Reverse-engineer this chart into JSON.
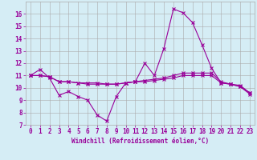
{
  "xlabel": "Windchill (Refroidissement éolien,°C)",
  "x": [
    0,
    1,
    2,
    3,
    4,
    5,
    6,
    7,
    8,
    9,
    10,
    11,
    12,
    13,
    14,
    15,
    16,
    17,
    18,
    19,
    20,
    21,
    22,
    23
  ],
  "line1": [
    11.0,
    11.5,
    10.8,
    9.4,
    9.7,
    9.3,
    9.0,
    7.8,
    7.3,
    9.3,
    10.4,
    10.5,
    12.0,
    11.0,
    13.2,
    16.4,
    16.1,
    15.3,
    13.5,
    11.6,
    10.4,
    10.3,
    10.1,
    9.6
  ],
  "line2": [
    11.0,
    11.0,
    10.9,
    10.5,
    10.5,
    10.4,
    10.4,
    10.4,
    10.3,
    10.3,
    10.4,
    10.5,
    10.6,
    10.7,
    10.8,
    11.0,
    11.2,
    11.2,
    11.2,
    11.2,
    10.5,
    10.3,
    10.2,
    9.6
  ],
  "line3": [
    11.0,
    11.0,
    10.9,
    10.5,
    10.5,
    10.4,
    10.3,
    10.3,
    10.3,
    10.3,
    10.4,
    10.5,
    10.5,
    10.6,
    10.7,
    10.8,
    11.0,
    11.0,
    11.0,
    11.0,
    10.4,
    10.3,
    10.1,
    9.5
  ],
  "line_color": "#990099",
  "bg_color": "#d5edf5",
  "grid_color": "#aaaaaa",
  "ylim": [
    7,
    17
  ],
  "xlim": [
    -0.5,
    23.5
  ],
  "yticks": [
    7,
    8,
    9,
    10,
    11,
    12,
    13,
    14,
    15,
    16
  ],
  "xticks": [
    0,
    1,
    2,
    3,
    4,
    5,
    6,
    7,
    8,
    9,
    10,
    11,
    12,
    13,
    14,
    15,
    16,
    17,
    18,
    19,
    20,
    21,
    22,
    23
  ],
  "tick_fontsize": 5.5,
  "xlabel_fontsize": 5.5
}
